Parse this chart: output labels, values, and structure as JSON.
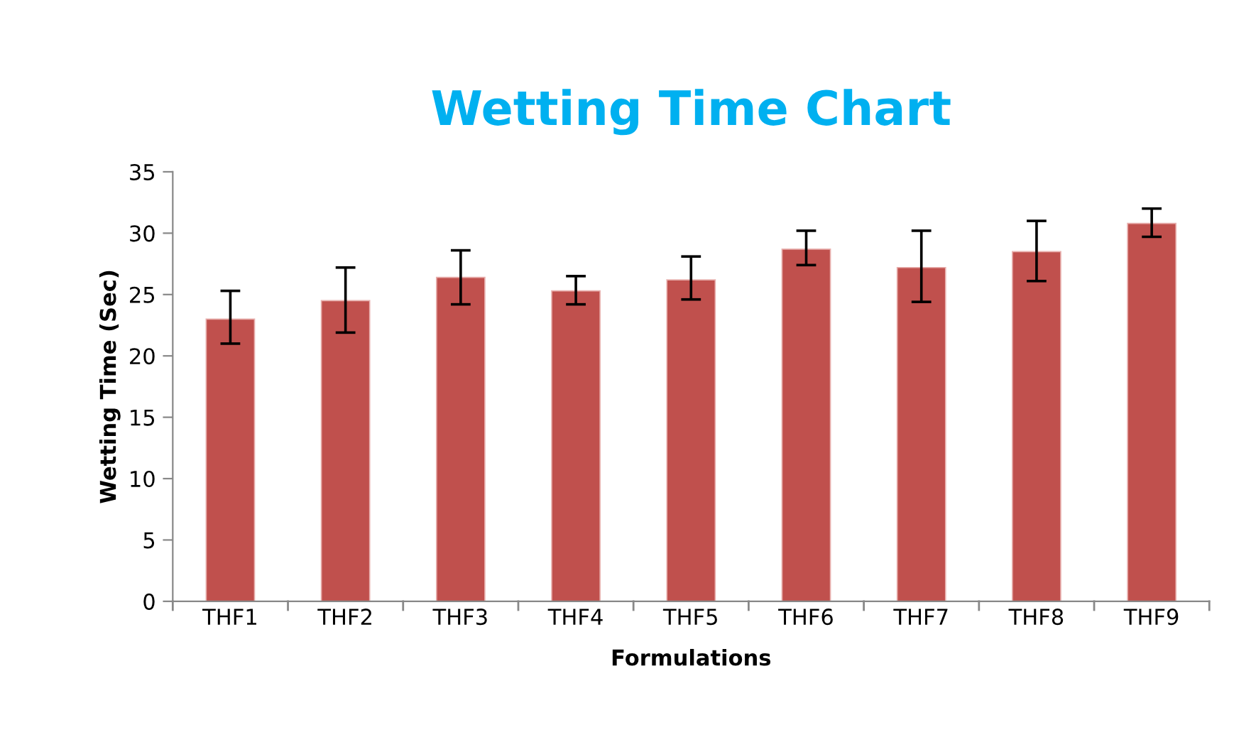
{
  "chart_data": {
    "type": "bar",
    "title": "Wetting Time Chart",
    "xlabel": "Formulations",
    "ylabel": "Wetting Time (Sec)",
    "categories": [
      "THF1",
      "THF2",
      "THF3",
      "THF4",
      "THF5",
      "THF6",
      "THF7",
      "THF8",
      "THF9"
    ],
    "values": [
      23.0,
      24.5,
      26.4,
      25.3,
      26.2,
      28.7,
      27.2,
      28.5,
      30.8
    ],
    "errors": [
      [
        21.0,
        25.3
      ],
      [
        21.9,
        27.2
      ],
      [
        24.2,
        28.6
      ],
      [
        24.2,
        26.5
      ],
      [
        24.6,
        28.1
      ],
      [
        27.4,
        30.2
      ],
      [
        24.4,
        30.2
      ],
      [
        26.1,
        31.0
      ],
      [
        29.7,
        32.0
      ]
    ],
    "color": "#c0504d",
    "ylim": [
      0,
      35
    ],
    "yticks": [
      0,
      5,
      10,
      15,
      20,
      25,
      30,
      35
    ],
    "grid": false,
    "legend": false
  }
}
